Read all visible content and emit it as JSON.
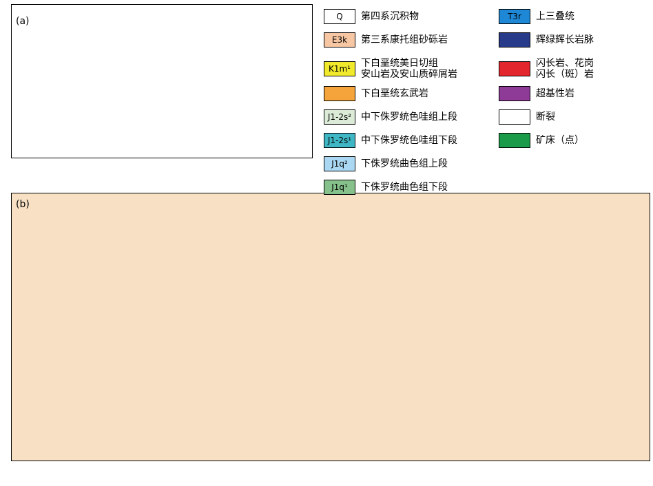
{
  "panel_a": {
    "label": "(a)"
  },
  "panel_b": {
    "label": "(b)"
  },
  "legend": [
    {
      "code": "Q",
      "text": "第四系沉积物",
      "color": "#ffffff"
    },
    {
      "code": "E3k",
      "text": "第三系康托组砂砾岩",
      "color": "#f7c6a2"
    },
    {
      "code": "K1m¹",
      "text": "下白垩统美日切组\n安山岩及安山质碎屑岩",
      "color": "#f1ea2c"
    },
    {
      "code": "",
      "text": "下白垩统玄武岩",
      "color": "#f4a43a"
    },
    {
      "code": "J1-2s²",
      "text": "中下侏罗统色哇组上段",
      "color": "#dcebd8"
    },
    {
      "code": "J1-2s¹",
      "text": "中下侏罗统色哇组下段",
      "color": "#3fb6c4"
    },
    {
      "code": "J1q²",
      "text": "下侏罗统曲色组上段",
      "color": "#aad8f3"
    },
    {
      "code": "J1q¹",
      "text": "下侏罗统曲色组下段",
      "color": "#86c08a"
    },
    {
      "code": "T3r",
      "text": "上三叠统",
      "color": "#1e88d6"
    },
    {
      "code": "",
      "text": "辉绿辉长岩脉",
      "color": "#283a8a"
    },
    {
      "code": "",
      "text": "闪长岩、花岗\n闪长（斑）岩",
      "color": "#e3262d"
    },
    {
      "code": "",
      "text": "超基性岩",
      "color": "#8e3a97"
    },
    {
      "code": "",
      "text": "断裂",
      "color": "#ffffff"
    },
    {
      "code": "",
      "text": "矿床（点）",
      "color": "#1a9b4a"
    }
  ]
}
